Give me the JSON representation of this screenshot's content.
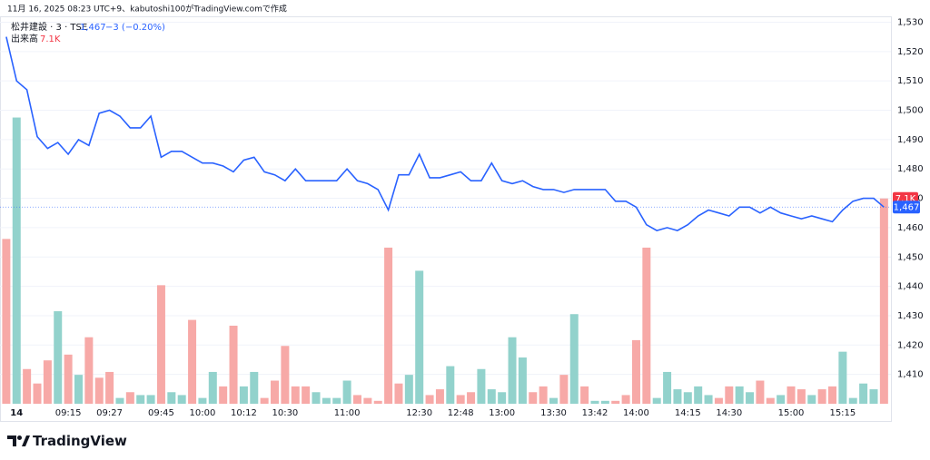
{
  "chart_data": {
    "type": "line",
    "title": "11月 16, 2025 08:23 UTC+9、kabutoshi100がTradingView.comで作成",
    "categories": [
      null,
      "14",
      null,
      null,
      null,
      null,
      "09:15",
      null,
      null,
      null,
      "09:27",
      null,
      null,
      null,
      null,
      "09:45",
      null,
      null,
      null,
      "10:00",
      null,
      null,
      null,
      "10:12",
      null,
      null,
      null,
      "10:30",
      null,
      null,
      null,
      null,
      null,
      "11:00",
      null,
      null,
      null,
      null,
      null,
      null,
      "12:30",
      null,
      null,
      null,
      "12:48",
      null,
      null,
      null,
      "13:00",
      null,
      null,
      null,
      null,
      "13:30",
      null,
      null,
      null,
      "13:42",
      null,
      null,
      null,
      "14:00",
      null,
      null,
      null,
      null,
      "14:15",
      null,
      null,
      null,
      "14:30",
      null,
      null,
      null,
      null,
      null,
      "15:00",
      null,
      null,
      null,
      null,
      "15:15",
      null,
      null,
      null,
      null
    ],
    "series": [
      {
        "name": "松井建設 · 3 · TSE",
        "color": "#2962ff",
        "last_label": "1,467",
        "change_label": "−3 (−0.20%)",
        "values": [
          1525,
          1510,
          1507,
          1491,
          1487,
          1489,
          1485,
          1490,
          1488,
          1499,
          1500,
          1498,
          1494,
          1494,
          1498,
          1484,
          1486,
          1486,
          1484,
          1482,
          1482,
          1481,
          1479,
          1483,
          1484,
          1479,
          1478,
          1476,
          1480,
          1476,
          1476,
          1476,
          1476,
          1480,
          1476,
          1475,
          1473,
          1466,
          1478,
          1478,
          1485,
          1477,
          1477,
          1478,
          1479,
          1476,
          1476,
          1482,
          1476,
          1475,
          1476,
          1474,
          1473,
          1473,
          1472,
          1473,
          1473,
          1473,
          1473,
          1469,
          1469,
          1467,
          1461,
          1459,
          1460,
          1459,
          1461,
          1464,
          1466,
          1465,
          1464,
          1467,
          1467,
          1465,
          1467,
          1465,
          1464,
          1463,
          1464,
          1463,
          1462,
          1466,
          1469,
          1470,
          1470,
          1467
        ]
      },
      {
        "name": "出来高",
        "type": "bar",
        "axis": "y2",
        "last_label": "7.1K",
        "color": "#f23645",
        "colors": [
          "#f7a9a7",
          "#92d2cc",
          "#f7a9a7",
          "#f7a9a7",
          "#f7a9a7",
          "#92d2cc",
          "#f7a9a7",
          "#92d2cc",
          "#f7a9a7",
          "#f7a9a7",
          "#f7a9a7",
          "#92d2cc",
          "#f7a9a7",
          "#92d2cc",
          "#92d2cc",
          "#f7a9a7",
          "#92d2cc",
          "#92d2cc",
          "#f7a9a7",
          "#92d2cc",
          "#92d2cc",
          "#f7a9a7",
          "#f7a9a7",
          "#92d2cc",
          "#92d2cc",
          "#f7a9a7",
          "#f7a9a7",
          "#f7a9a7",
          "#f7a9a7",
          "#f7a9a7",
          "#92d2cc",
          "#92d2cc",
          "#92d2cc",
          "#92d2cc",
          "#f7a9a7",
          "#f7a9a7",
          "#f7a9a7",
          "#f7a9a7",
          "#f7a9a7",
          "#92d2cc",
          "#92d2cc",
          "#f7a9a7",
          "#f7a9a7",
          "#92d2cc",
          "#f7a9a7",
          "#f7a9a7",
          "#92d2cc",
          "#92d2cc",
          "#92d2cc",
          "#92d2cc",
          "#92d2cc",
          "#f7a9a7",
          "#f7a9a7",
          "#92d2cc",
          "#f7a9a7",
          "#92d2cc",
          "#f7a9a7",
          "#92d2cc",
          "#92d2cc",
          "#f7a9a7",
          "#f7a9a7",
          "#f7a9a7",
          "#f7a9a7",
          "#92d2cc",
          "#92d2cc",
          "#92d2cc",
          "#92d2cc",
          "#92d2cc",
          "#92d2cc",
          "#f7a9a7",
          "#f7a9a7",
          "#92d2cc",
          "#92d2cc",
          "#f7a9a7",
          "#f7a9a7",
          "#92d2cc",
          "#f7a9a7",
          "#f7a9a7",
          "#92d2cc",
          "#f7a9a7",
          "#f7a9a7",
          "#92d2cc",
          "#92d2cc",
          "#92d2cc",
          "#92d2cc",
          "#f7a9a7"
        ],
        "values": [
          5700,
          9900,
          1200,
          700,
          1500,
          3200,
          1700,
          1000,
          2300,
          900,
          1100,
          200,
          400,
          300,
          300,
          4100,
          400,
          300,
          2900,
          200,
          1100,
          600,
          2700,
          600,
          1100,
          200,
          800,
          2000,
          600,
          600,
          400,
          200,
          200,
          800,
          300,
          200,
          100,
          5400,
          700,
          1000,
          4600,
          300,
          500,
          1300,
          300,
          400,
          1200,
          500,
          400,
          2300,
          1600,
          400,
          600,
          200,
          1000,
          3100,
          600,
          100,
          100,
          100,
          300,
          2200,
          5400,
          200,
          1100,
          500,
          400,
          600,
          300,
          200,
          600,
          600,
          400,
          800,
          200,
          300,
          600,
          500,
          300,
          500,
          600,
          1800,
          200,
          700,
          500,
          7100
        ]
      }
    ],
    "ylim": [
      1400,
      1532
    ],
    "yticks": [
      {
        "value": 1410,
        "label": "1,410"
      },
      {
        "value": 1420,
        "label": "1,420"
      },
      {
        "value": 1430,
        "label": "1,430"
      },
      {
        "value": 1440,
        "label": "1,440"
      },
      {
        "value": 1450,
        "label": "1,450"
      },
      {
        "value": 1460,
        "label": "1,460"
      },
      {
        "value": 1470,
        "label": "1,470"
      },
      {
        "value": 1480,
        "label": "1,480"
      },
      {
        "value": 1490,
        "label": "1,490"
      },
      {
        "value": 1500,
        "label": "1,500"
      },
      {
        "value": 1510,
        "label": "1,510"
      },
      {
        "value": 1520,
        "label": "1,520"
      },
      {
        "value": 1530,
        "label": "1,530"
      }
    ],
    "y2lim": [
      0,
      13400
    ],
    "grid": true,
    "logo": "TradingView"
  }
}
